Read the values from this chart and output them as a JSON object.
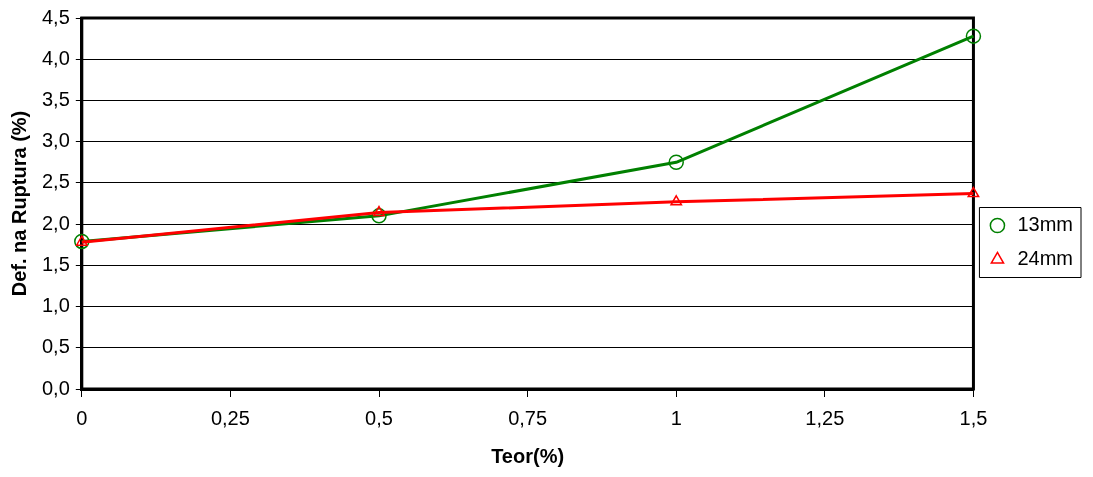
{
  "chart_data": {
    "type": "line",
    "xlabel": "Teor(%)",
    "ylabel": "Def. na Ruptura (%)",
    "x": [
      0,
      0.5,
      1,
      1.5
    ],
    "series": [
      {
        "name": "13mm",
        "color": "#008000",
        "marker": "circle",
        "values": [
          1.79,
          2.1,
          2.75,
          4.28
        ]
      },
      {
        "name": "24mm",
        "color": "#ff0000",
        "marker": "triangle",
        "values": [
          1.78,
          2.14,
          2.27,
          2.37
        ]
      }
    ],
    "xlim": [
      0,
      1.5
    ],
    "xticks": [
      0,
      {
        "value": 0.25,
        "label": "0,25"
      },
      {
        "value": 0.5,
        "label": "0,5"
      },
      {
        "value": 0.75,
        "label": "0,75"
      },
      1,
      {
        "value": 1.25,
        "label": "1,25"
      },
      {
        "value": 1.5,
        "label": "1,5"
      }
    ],
    "ylim": [
      0,
      4.5
    ],
    "yticks": [
      {
        "value": 0,
        "label": "0,0"
      },
      {
        "value": 0.5,
        "label": "0,5"
      },
      {
        "value": 1,
        "label": "1,0"
      },
      {
        "value": 1.5,
        "label": "1,5"
      },
      {
        "value": 2,
        "label": "2,0"
      },
      {
        "value": 2.5,
        "label": "2,5"
      },
      {
        "value": 3,
        "label": "3,0"
      },
      {
        "value": 3.5,
        "label": "3,5"
      },
      {
        "value": 4,
        "label": "4,0"
      },
      {
        "value": 4.5,
        "label": "4,5"
      }
    ],
    "grid": "y",
    "legend": "right"
  }
}
